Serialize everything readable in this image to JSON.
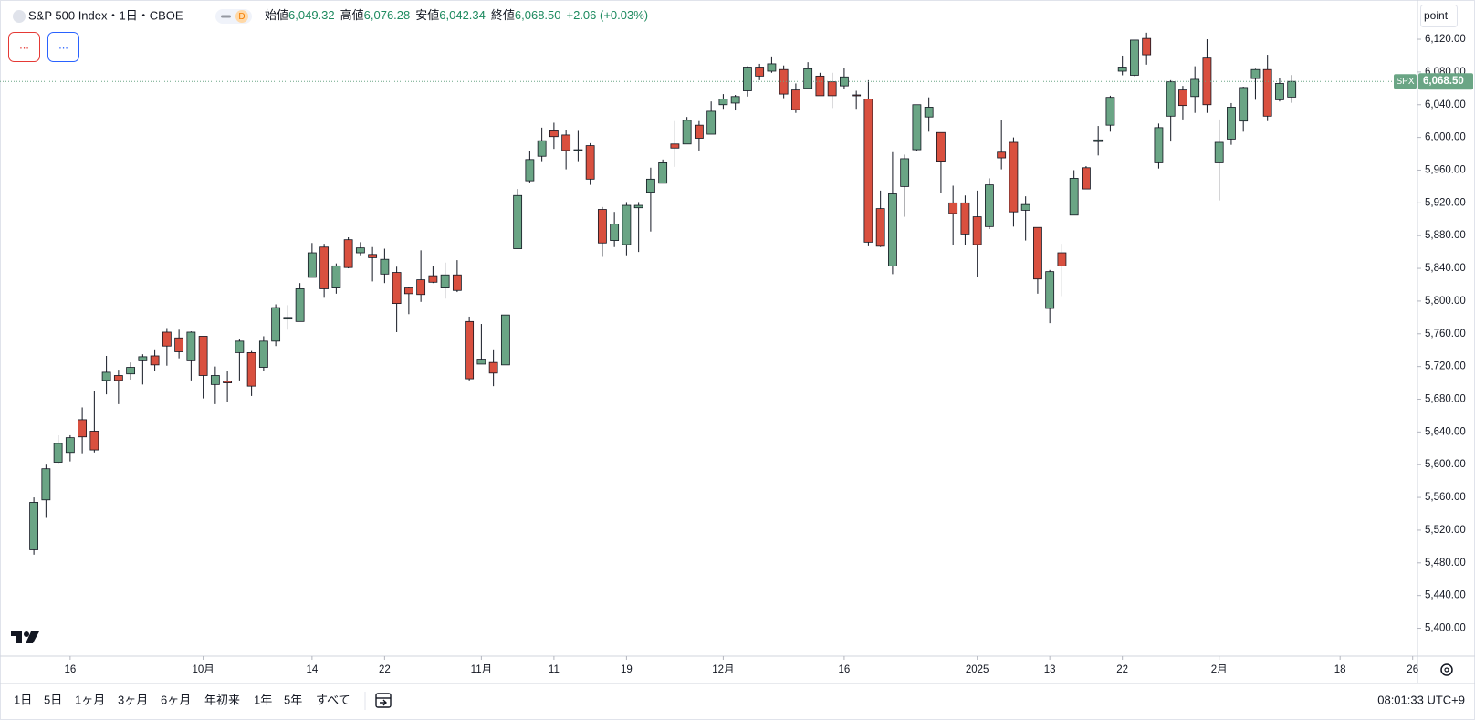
{
  "header": {
    "symbol": "S&P 500 Index・1日・CBOE",
    "interval_badge": "D",
    "open_label": "始値",
    "open": "6,049.32",
    "high_label": "高値",
    "high": "6,076.28",
    "low_label": "安値",
    "low": "6,042.34",
    "close_label": "終値",
    "close": "6,068.50",
    "change": "+2.06 (+0.03%)",
    "buttons": [
      "...",
      "..."
    ],
    "unit_button": "point"
  },
  "toolbar": {
    "ranges": [
      "1日",
      "5日",
      "1ヶ月",
      "3ヶ月",
      "6ヶ月",
      "年初来",
      "1年",
      "5年",
      "すべて"
    ],
    "clock": "08:01:33 UTC+9"
  },
  "chart_data": {
    "type": "candlestick",
    "name": "SPX",
    "up_color": "#6aa585",
    "down_color": "#d9503f",
    "grid": false,
    "last_price_label": "6,068.50",
    "open": [
      5496,
      5557,
      5603,
      5615,
      5655,
      5641,
      5703,
      5709,
      5711,
      5727,
      5733,
      5762,
      5755,
      5727,
      5757,
      5698,
      5702,
      5737,
      5737,
      5719,
      5751,
      5778,
      5775,
      5829,
      5866,
      5816,
      5875,
      5859,
      5857,
      5833,
      5835,
      5816,
      5826,
      5831,
      5816,
      5832,
      5775,
      5723,
      5725,
      5722,
      5864,
      5947,
      5977,
      6008,
      6003,
      5985,
      5990,
      5912,
      5874,
      5869,
      5914,
      5933,
      5944,
      5992,
      5992,
      6015,
      6004,
      6040,
      6042,
      6057,
      6086,
      6081,
      6083,
      6058,
      6060,
      6075,
      6068,
      6063,
      6052,
      6047,
      5913,
      5843,
      5940,
      5985,
      6025,
      6006,
      5920,
      5920,
      5903,
      5891,
      5982,
      5994,
      5911,
      5890,
      5791,
      5859,
      5905,
      5963,
      5995,
      6015,
      6081,
      6076,
      6121,
      5969,
      6026,
      6058,
      6050,
      6097,
      5969,
      5998,
      6020,
      6072,
      6083,
      6046,
      6049.32
    ],
    "high": [
      5560,
      5600,
      5636,
      5636,
      5670,
      5690,
      5733,
      5715,
      5725,
      5735,
      5741,
      5767,
      5765,
      5763,
      5757,
      5720,
      5714,
      5753,
      5739,
      5757,
      5796,
      5795,
      5822,
      5871,
      5870,
      5846,
      5878,
      5872,
      5866,
      5864,
      5842,
      5817,
      5862,
      5843,
      5847,
      5850,
      5781,
      5772,
      5741,
      5783,
      5937,
      5983,
      6012,
      6018,
      6009,
      6008,
      5993,
      5915,
      5909,
      5921,
      5921,
      5963,
      5973,
      6020,
      6025,
      6020,
      6044,
      6053,
      6052,
      6087,
      6090,
      6099,
      6088,
      6066,
      6092,
      6079,
      6079,
      6085,
      6057,
      6070,
      5935,
      5982,
      5979,
      6040,
      6049,
      6006,
      5941,
      5929,
      5935,
      5950,
      6021,
      6000,
      5928,
      5890,
      5838,
      5870,
      5960,
      5965,
      6014,
      6051,
      6100,
      6119,
      6128,
      6017,
      6070,
      6063,
      6087,
      6120,
      6022,
      6042,
      6062,
      6084,
      6101,
      6073,
      6076.28
    ],
    "low": [
      5490,
      5535,
      5601,
      5604,
      5614,
      5615,
      5686,
      5674,
      5704,
      5698,
      5714,
      5721,
      5730,
      5703,
      5681,
      5674,
      5677,
      5703,
      5684,
      5714,
      5745,
      5765,
      5775,
      5829,
      5804,
      5809,
      5840,
      5856,
      5824,
      5822,
      5762,
      5784,
      5799,
      5822,
      5803,
      5811,
      5703,
      5723,
      5696,
      5722,
      5864,
      5945,
      5971,
      5986,
      5961,
      5971,
      5942,
      5854,
      5866,
      5856,
      5860,
      5885,
      5944,
      5964,
      5992,
      5984,
      6004,
      6035,
      6033,
      6050,
      6070,
      6079,
      6048,
      6030,
      6059,
      6051,
      6036,
      6059,
      6035,
      5867,
      5866,
      5833,
      5903,
      5983,
      6007,
      5932,
      5869,
      5868,
      5829,
      5888,
      5961,
      5891,
      5874,
      5809,
      5773,
      5806,
      5905,
      5937,
      5978,
      6007,
      6076,
      6075,
      6089,
      5962,
      5995,
      6022,
      6030,
      6030,
      5923,
      5991,
      6007,
      6046,
      6020,
      6044,
      6042.34
    ],
    "close": [
      5554,
      5595,
      5626,
      5633,
      5634,
      5618,
      5713,
      5703,
      5719,
      5732,
      5722,
      5745,
      5738,
      5762,
      5709,
      5709,
      5700,
      5751,
      5696,
      5751,
      5792,
      5780,
      5815,
      5859,
      5815,
      5843,
      5841,
      5865,
      5853,
      5851,
      5797,
      5809,
      5808,
      5823,
      5832,
      5813,
      5705,
      5729,
      5712,
      5783,
      5929,
      5973,
      5996,
      6001,
      5984,
      5985,
      5949,
      5871,
      5894,
      5917,
      5917,
      5949,
      5969,
      5987,
      6021,
      5999,
      6032,
      6047,
      6050,
      6086,
      6075,
      6090,
      6053,
      6034,
      6084,
      6051,
      6051,
      6074,
      6051,
      5872,
      5867,
      5931,
      5974,
      6040,
      6037,
      5971,
      5907,
      5882,
      5869,
      5942,
      5975,
      5909,
      5918,
      5827,
      5836,
      5843,
      5950,
      5937,
      5997,
      6049,
      6086,
      6119,
      6101,
      6012,
      6068,
      6039,
      6071,
      6040,
      5994,
      6037,
      6061,
      6083,
      6026,
      6066,
      6068.5
    ],
    "xlim": [
      -2.8,
      114.4
    ],
    "xticks": [
      {
        "value": 3,
        "label": "16"
      },
      {
        "value": 14,
        "label": "10月"
      },
      {
        "value": 23,
        "label": "14"
      },
      {
        "value": 29,
        "label": "22"
      },
      {
        "value": 37,
        "label": "11月"
      },
      {
        "value": 43,
        "label": "11"
      },
      {
        "value": 49,
        "label": "19"
      },
      {
        "value": 57,
        "label": "12月"
      },
      {
        "value": 67,
        "label": "16"
      },
      {
        "value": 78,
        "label": "2025"
      },
      {
        "value": 84,
        "label": "13"
      },
      {
        "value": 90,
        "label": "22"
      },
      {
        "value": 98,
        "label": "2月"
      },
      {
        "value": 108,
        "label": "18"
      },
      {
        "value": 114,
        "label": "26"
      }
    ],
    "ylim": [
      5366,
      6168
    ],
    "yticks": [
      {
        "value": 5400,
        "label": "5,400.00"
      },
      {
        "value": 5440,
        "label": "5,440.00"
      },
      {
        "value": 5480,
        "label": "5,480.00"
      },
      {
        "value": 5520,
        "label": "5,520.00"
      },
      {
        "value": 5560,
        "label": "5,560.00"
      },
      {
        "value": 5600,
        "label": "5,600.00"
      },
      {
        "value": 5640,
        "label": "5,640.00"
      },
      {
        "value": 5680,
        "label": "5,680.00"
      },
      {
        "value": 5720,
        "label": "5,720.00"
      },
      {
        "value": 5760,
        "label": "5,760.00"
      },
      {
        "value": 5800,
        "label": "5,800.00"
      },
      {
        "value": 5840,
        "label": "5,840.00"
      },
      {
        "value": 5880,
        "label": "5,880.00"
      },
      {
        "value": 5920,
        "label": "5,920.00"
      },
      {
        "value": 5960,
        "label": "5,960.00"
      },
      {
        "value": 6000,
        "label": "6,000.00"
      },
      {
        "value": 6040,
        "label": "6,040.00"
      },
      {
        "value": 6080,
        "label": "6,080.00"
      },
      {
        "value": 6120,
        "label": "6,120.00"
      }
    ]
  }
}
